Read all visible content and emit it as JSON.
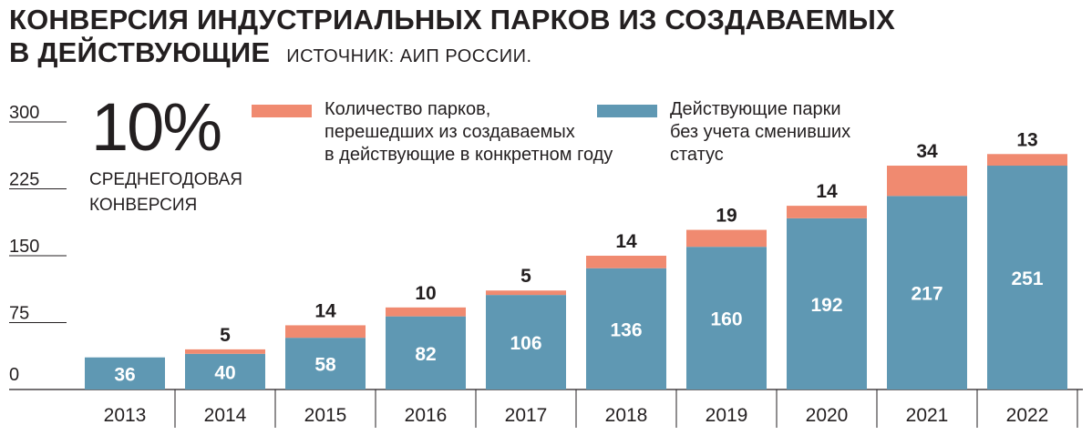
{
  "header": {
    "title_line1": "КОНВЕРСИЯ ИНДУСТРИАЛЬНЫХ ПАРКОВ ИЗ СОЗДАВАЕМЫХ",
    "title_line2": "В ДЕЙСТВУЮЩИЕ",
    "source": "ИСТОЧНИК: АИП РОССИИ."
  },
  "highlight": {
    "value": "10%",
    "caption_line1": "СРЕДНЕГОДОВАЯ",
    "caption_line2": "КОНВЕРСИЯ"
  },
  "legend": [
    {
      "lines": [
        "Количество парков,",
        "перешедших из создаваемых",
        "в действующие в конкретном году"
      ],
      "color": "#f08a70"
    },
    {
      "lines": [
        "Действующие парки",
        "без учета сменивших",
        "статус"
      ],
      "color": "#5f98b3"
    }
  ],
  "chart_data": {
    "type": "bar",
    "stacked": true,
    "categories": [
      "2013",
      "2014",
      "2015",
      "2016",
      "2017",
      "2018",
      "2019",
      "2020",
      "2021",
      "2022"
    ],
    "series": [
      {
        "name": "Действующие парки без учета сменивших статус",
        "color": "#5f98b3",
        "values": [
          36,
          40,
          58,
          82,
          106,
          136,
          160,
          192,
          217,
          251
        ]
      },
      {
        "name": "Количество парков, перешедших из создаваемых в действующие в конкретном году",
        "color": "#f08a70",
        "values": [
          null,
          5,
          14,
          10,
          5,
          14,
          19,
          14,
          34,
          13
        ]
      }
    ],
    "yticks": [
      "0",
      "75",
      "150",
      "225",
      "300"
    ],
    "ylim": [
      0,
      300
    ],
    "grid": false,
    "legend_position": "top"
  }
}
